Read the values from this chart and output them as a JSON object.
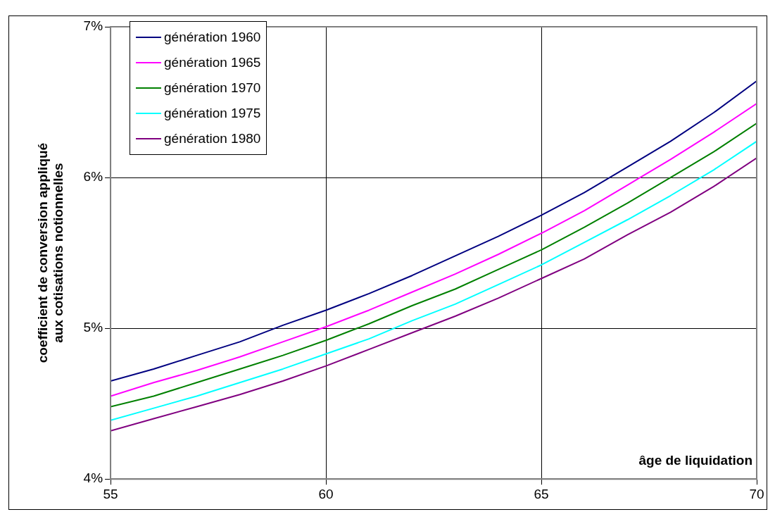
{
  "chart_data": {
    "type": "line",
    "xlabel": "âge de liquidation",
    "ylabel": "coefficient de conversion appliqué aux cotisations notionnelles",
    "x": [
      55,
      56,
      57,
      58,
      59,
      60,
      61,
      62,
      63,
      64,
      65,
      66,
      67,
      68,
      69,
      70
    ],
    "series": [
      {
        "name": "génération 1960",
        "color": "#000080",
        "values": [
          4.65,
          4.73,
          4.82,
          4.91,
          5.02,
          5.12,
          5.23,
          5.35,
          5.48,
          5.61,
          5.75,
          5.9,
          6.07,
          6.24,
          6.43,
          6.64
        ]
      },
      {
        "name": "génération 1965",
        "color": "#ff00ff",
        "values": [
          4.55,
          4.64,
          4.72,
          4.81,
          4.91,
          5.01,
          5.12,
          5.24,
          5.36,
          5.49,
          5.63,
          5.78,
          5.95,
          6.12,
          6.3,
          6.49
        ]
      },
      {
        "name": "génération 1970",
        "color": "#008000",
        "values": [
          4.48,
          4.55,
          4.64,
          4.73,
          4.82,
          4.92,
          5.03,
          5.15,
          5.26,
          5.39,
          5.52,
          5.67,
          5.83,
          6.0,
          6.17,
          6.36
        ]
      },
      {
        "name": "génération 1975",
        "color": "#00ffff",
        "values": [
          4.39,
          4.47,
          4.55,
          4.64,
          4.73,
          4.83,
          4.93,
          5.05,
          5.16,
          5.29,
          5.42,
          5.57,
          5.72,
          5.88,
          6.05,
          6.24
        ]
      },
      {
        "name": "génération 1980",
        "color": "#800080",
        "values": [
          4.32,
          4.4,
          4.48,
          4.56,
          4.65,
          4.75,
          4.86,
          4.97,
          5.08,
          5.2,
          5.33,
          5.46,
          5.62,
          5.77,
          5.94,
          6.13
        ]
      }
    ],
    "xlim": [
      55,
      70
    ],
    "xticks": [
      55,
      60,
      65,
      70
    ],
    "ylim": [
      4,
      7
    ],
    "yticks": [
      {
        "value": 4,
        "label": "4%"
      },
      {
        "value": 5,
        "label": "5%"
      },
      {
        "value": 6,
        "label": "6%"
      },
      {
        "value": 7,
        "label": "7%"
      }
    ],
    "grid": true,
    "legend": "top left",
    "marker": "none",
    "line_style": "solid"
  }
}
